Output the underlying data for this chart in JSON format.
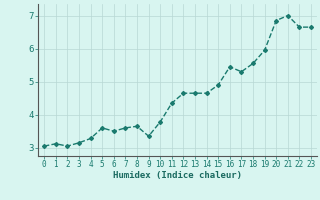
{
  "x": [
    0,
    1,
    2,
    3,
    4,
    5,
    6,
    7,
    8,
    9,
    10,
    11,
    12,
    13,
    14,
    15,
    16,
    17,
    18,
    19,
    20,
    21,
    22,
    23
  ],
  "y": [
    3.05,
    3.12,
    3.05,
    3.15,
    3.28,
    3.6,
    3.5,
    3.6,
    3.65,
    3.35,
    3.78,
    4.35,
    4.65,
    4.65,
    4.65,
    4.9,
    5.45,
    5.3,
    5.55,
    5.95,
    6.85,
    7.0,
    6.65,
    6.65
  ],
  "line_color": "#1a7a6e",
  "marker": "D",
  "marker_size": 2.0,
  "linewidth": 1.0,
  "bg_color": "#d8f5f0",
  "plot_bg_color": "#d8f5f0",
  "grid_color": "#b8d8d4",
  "xlabel": "Humidex (Indice chaleur)",
  "xlabel_color": "#1a6a60",
  "tick_color": "#1a7a6e",
  "ylim": [
    2.75,
    7.35
  ],
  "yticks": [
    3,
    4,
    5,
    6,
    7
  ],
  "xlim": [
    -0.5,
    23.5
  ],
  "xticks": [
    0,
    1,
    2,
    3,
    4,
    5,
    6,
    7,
    8,
    9,
    10,
    11,
    12,
    13,
    14,
    15,
    16,
    17,
    18,
    19,
    20,
    21,
    22,
    23
  ],
  "xtick_labels": [
    "0",
    "1",
    "2",
    "3",
    "4",
    "5",
    "6",
    "7",
    "8",
    "9",
    "10",
    "11",
    "12",
    "13",
    "14",
    "15",
    "16",
    "17",
    "18",
    "19",
    "20",
    "21",
    "22",
    "23"
  ]
}
